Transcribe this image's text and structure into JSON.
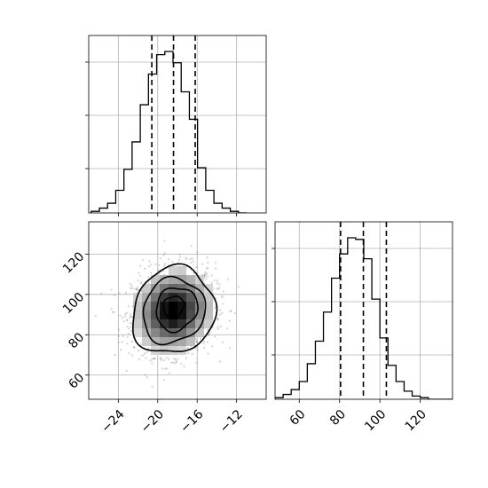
{
  "chart_data": {
    "type": "corner",
    "grid": true,
    "parameters": [
      {
        "xlim": [
          -27,
          -9
        ],
        "ticks": [
          -24,
          -20,
          -16,
          -12
        ],
        "tick_labels": [
          "−24",
          "−20",
          "−16",
          "−12"
        ],
        "quantiles": [
          -20.6,
          -18.4,
          -16.2
        ],
        "histogram": {
          "bin_start": -26.75,
          "bin_width": 0.83,
          "counts": [
            1,
            3,
            6,
            14,
            27,
            44,
            67,
            86,
            98,
            100,
            93,
            75,
            58,
            28,
            14,
            6,
            3,
            1,
            0
          ]
        }
      },
      {
        "xlim": [
          48,
          136
        ],
        "ticks": [
          60,
          80,
          100,
          120
        ],
        "tick_labels": [
          "60",
          "80",
          "100",
          "120"
        ],
        "quantiles": [
          80.5,
          91.8,
          103.2
        ],
        "histogram": {
          "bin_start": 48,
          "bin_width": 4.0,
          "counts": [
            1,
            3,
            6,
            11,
            22,
            36,
            54,
            75,
            90,
            100,
            99,
            87,
            62,
            38,
            21,
            11,
            5,
            2,
            1,
            0,
            0,
            0
          ]
        }
      }
    ],
    "joint": {
      "xlim": [
        -27,
        -9
      ],
      "ylim": [
        48,
        136
      ],
      "x_ticks": [
        -24,
        -20,
        -16,
        -12
      ],
      "x_tick_labels": [
        "−24",
        "−20",
        "−16",
        "−12"
      ],
      "y_ticks": [
        60,
        80,
        100,
        120
      ],
      "y_tick_labels": [
        "60",
        "80",
        "100",
        "120"
      ],
      "center": [
        -18.4,
        91.8
      ],
      "sigma": [
        2.1,
        10.8
      ],
      "correlation": 0.1,
      "contour_levels_sigma": [
        0.5,
        1.0,
        1.5,
        2.0
      ],
      "contour_offset": [
        [
          0,
          2
        ],
        [
          0.3,
          1
        ],
        [
          0,
          0
        ],
        [
          0,
          0
        ]
      ]
    }
  }
}
